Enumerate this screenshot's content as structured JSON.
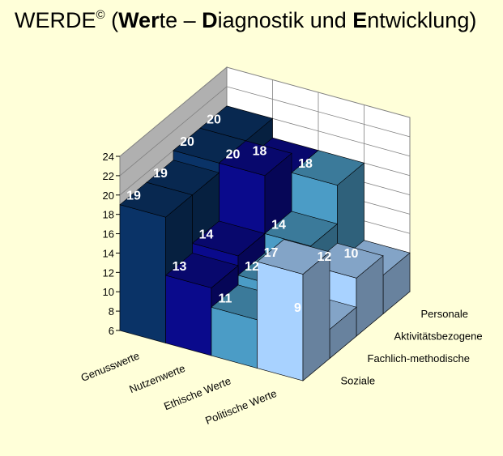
{
  "title": {
    "prefix": "WERDE",
    "sup": "©",
    "open": " (",
    "b1": "Wer",
    "t1": "te – ",
    "b2": "D",
    "t2": "iagnostik und ",
    "b3": "E",
    "t3": "ntwicklung)"
  },
  "chart_data": {
    "type": "bar",
    "subtype": "3d-column-grid",
    "categories": [
      "Genusswerte",
      "Nutzenwerte",
      "Ethische Werte",
      "Politische Werte"
    ],
    "series": [
      {
        "name": "Soziale",
        "values": [
          19,
          13,
          11,
          17
        ],
        "labels": [
          "19",
          "13",
          "11",
          "17"
        ],
        "color": "#A6CAF0"
      },
      {
        "name": "Fachlich-methodische",
        "values": [
          19,
          14,
          12,
          9
        ],
        "labels": [
          "19",
          "14",
          "12",
          "9"
        ],
        "color": "#4A9CC4"
      },
      {
        "name": "Aktivitätsbezogene",
        "values": [
          20,
          20,
          14,
          12
        ],
        "labels": [
          "20",
          "20",
          "14",
          "12"
        ],
        "color": "#0F0F8A"
      },
      {
        "name": "Personale",
        "values": [
          20,
          18,
          18,
          10
        ],
        "labels": [
          "20",
          "18",
          "18",
          "10"
        ],
        "color": "#0C2D5E"
      }
    ],
    "ylim": [
      6,
      24
    ],
    "yticks": [
      "6",
      "8",
      "10",
      "12",
      "14",
      "16",
      "18",
      "20",
      "22",
      "24"
    ],
    "colors": {
      "Genusswerte": "#0A3367",
      "Nutzenwerte": "#0A0A8C",
      "Ethische Werte": "#4B9CC6",
      "Politische Werte": "#A8D2FF"
    },
    "grid": true,
    "legend": "depth-axis-right"
  }
}
